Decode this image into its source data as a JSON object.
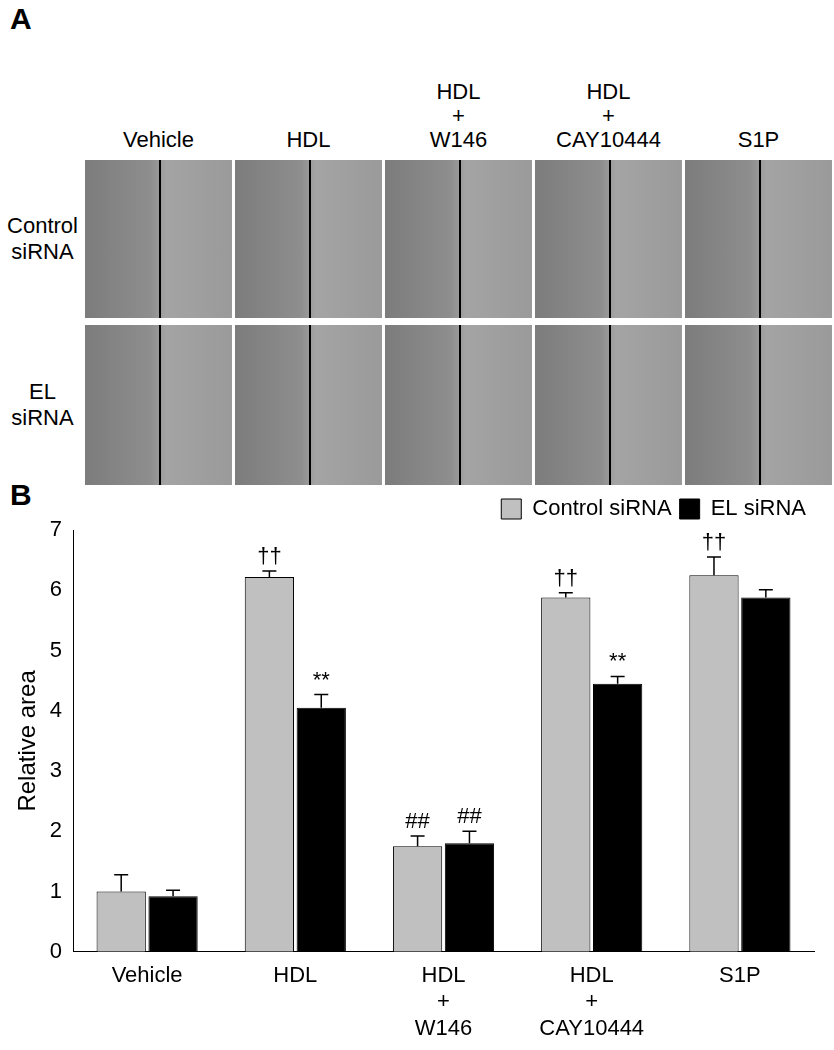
{
  "panel_a": {
    "label": "A",
    "columns": [
      "Vehicle",
      "HDL",
      "HDL + W146",
      "HDL + CAY10444",
      "S1P"
    ],
    "rows": [
      "Control siRNA",
      "EL siRNA"
    ]
  },
  "chart_data": {
    "type": "bar",
    "panel_label": "B",
    "y_label": "Relative area",
    "categories": [
      "Vehicle",
      "HDL",
      "HDL + W146",
      "HDL + CAY10444",
      "S1P"
    ],
    "series": [
      {
        "name": "Control siRNA",
        "color": "#c0c0c0",
        "values": [
          1.0,
          6.22,
          1.75,
          5.88,
          6.25
        ],
        "errors": [
          0.28,
          0.1,
          0.17,
          0.08,
          0.3
        ],
        "annotations": [
          null,
          "††",
          "##",
          "††",
          "††"
        ]
      },
      {
        "name": "EL siRNA",
        "color": "#000000",
        "values": [
          0.92,
          4.05,
          1.8,
          4.45,
          5.88
        ],
        "errors": [
          0.1,
          0.22,
          0.2,
          0.12,
          0.13
        ],
        "annotations": [
          null,
          "**",
          "##",
          "**",
          null
        ]
      }
    ],
    "ylim": [
      0,
      7
    ],
    "yticks": [
      0,
      1,
      2,
      3,
      4,
      5,
      6,
      7
    ],
    "grid": false,
    "legend": "top-right"
  }
}
